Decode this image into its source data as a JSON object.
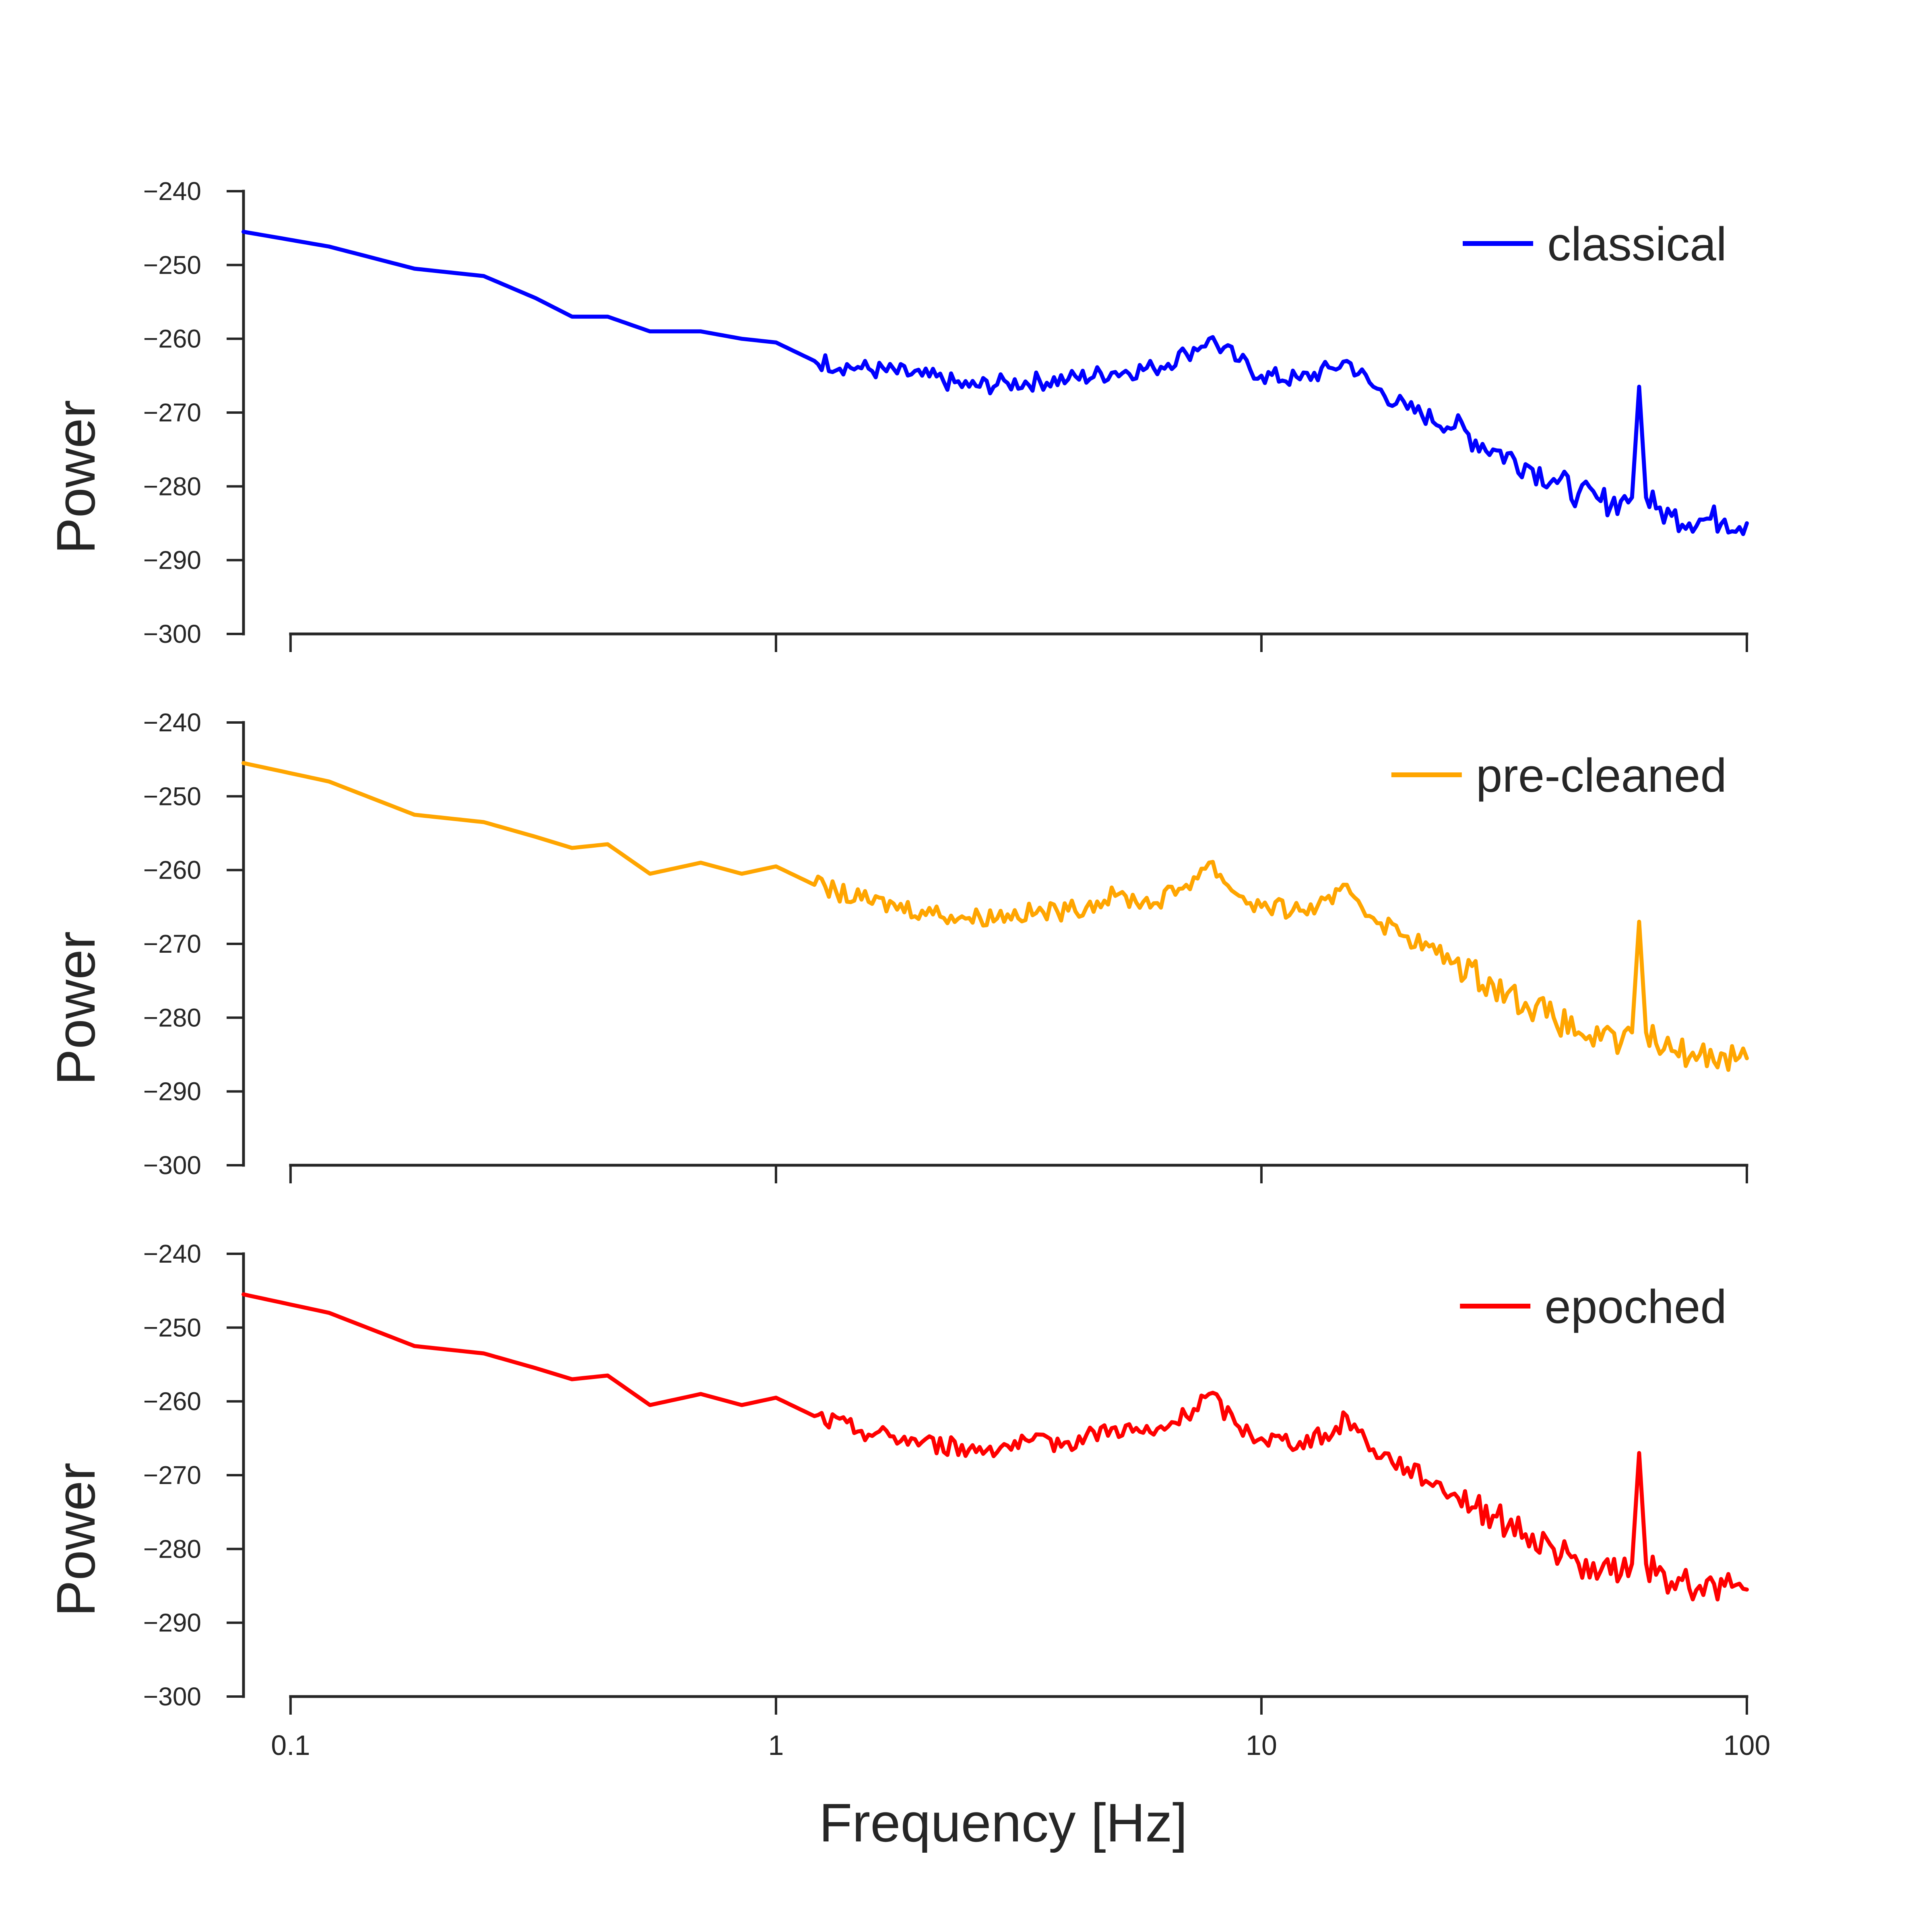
{
  "chart_data": [
    {
      "type": "line",
      "ylabel": "Power",
      "xlabel": "",
      "xscale": "log",
      "xlim": [
        0.08,
        100
      ],
      "ylim": [
        -300,
        -240
      ],
      "yticks": [
        "−240",
        "−250",
        "−260",
        "−270",
        "−280",
        "−290",
        "−300"
      ],
      "xticks": [
        0.1,
        1,
        10,
        100
      ],
      "xtick_labels": [],
      "legend_position": "top-right",
      "color": "#0000ff",
      "series": [
        {
          "name": "classical",
          "x": [
            0.08,
            0.12,
            0.18,
            0.25,
            0.32,
            0.38,
            0.45,
            0.55,
            0.7,
            0.85,
            1.0,
            1.2,
            1.5,
            2.0,
            2.5,
            3.0,
            4.0,
            5.0,
            6.0,
            7.0,
            7.8,
            9.0,
            10.0,
            12.0,
            14.0,
            15.0,
            17.0,
            20.0,
            25.0,
            30.0,
            35.0,
            40.0,
            45.0,
            50.0,
            55.0,
            58.0,
            60.0,
            62.0,
            65.0,
            70.0,
            80.0,
            90.0,
            100.0
          ],
          "y": [
            -245.5,
            -247.5,
            -250.5,
            -251.5,
            -254.5,
            -257.0,
            -257.0,
            -259.0,
            -259.0,
            -260.0,
            -260.5,
            -263.0,
            -264.0,
            -265.0,
            -266.5,
            -266.0,
            -265.5,
            -264.5,
            -264.0,
            -262.0,
            -260.0,
            -263.0,
            -265.0,
            -265.5,
            -264.0,
            -263.0,
            -266.5,
            -269.5,
            -272.0,
            -275.0,
            -277.0,
            -279.0,
            -281.0,
            -282.0,
            -282.0,
            -281.5,
            -266.5,
            -281.5,
            -283.0,
            -284.0,
            -284.5,
            -284.5,
            -285.0
          ]
        }
      ]
    },
    {
      "type": "line",
      "ylabel": "Power",
      "xlabel": "",
      "xscale": "log",
      "xlim": [
        0.08,
        100
      ],
      "ylim": [
        -300,
        -240
      ],
      "yticks": [
        "−240",
        "−250",
        "−260",
        "−270",
        "−280",
        "−290",
        "−300"
      ],
      "xticks": [
        0.1,
        1,
        10,
        100
      ],
      "xtick_labels": [],
      "legend_position": "top-right",
      "color": "#ffa500",
      "series": [
        {
          "name": "pre-cleaned",
          "x": [
            0.08,
            0.12,
            0.18,
            0.25,
            0.32,
            0.38,
            0.45,
            0.55,
            0.7,
            0.85,
            1.0,
            1.2,
            1.5,
            2.0,
            2.5,
            3.0,
            4.0,
            5.0,
            6.0,
            7.0,
            7.8,
            9.0,
            10.0,
            12.0,
            14.0,
            15.0,
            17.0,
            20.0,
            25.0,
            30.0,
            35.0,
            40.0,
            45.0,
            50.0,
            55.0,
            58.0,
            60.0,
            62.0,
            65.0,
            70.0,
            80.0,
            90.0,
            100.0
          ],
          "y": [
            -245.5,
            -248.0,
            -252.5,
            -253.5,
            -255.5,
            -257.0,
            -256.5,
            -260.5,
            -259.0,
            -260.5,
            -259.5,
            -262.0,
            -264.0,
            -265.5,
            -266.5,
            -266.0,
            -265.5,
            -263.5,
            -264.5,
            -262.0,
            -259.0,
            -263.5,
            -265.0,
            -265.5,
            -264.5,
            -262.0,
            -266.5,
            -269.0,
            -272.5,
            -275.5,
            -278.0,
            -280.0,
            -282.0,
            -283.0,
            -283.5,
            -282.0,
            -267.0,
            -282.0,
            -283.5,
            -284.5,
            -285.0,
            -285.0,
            -285.5
          ]
        }
      ]
    },
    {
      "type": "line",
      "ylabel": "Power",
      "xlabel": "Frequency [Hz]",
      "xscale": "log",
      "xlim": [
        0.08,
        100
      ],
      "ylim": [
        -300,
        -240
      ],
      "yticks": [
        "−240",
        "−250",
        "−260",
        "−270",
        "−280",
        "−290",
        "−300"
      ],
      "xticks": [
        0.1,
        1,
        10,
        100
      ],
      "xtick_labels": [
        "0.1",
        "1",
        "10",
        "100"
      ],
      "legend_position": "top-right",
      "color": "#ff0000",
      "series": [
        {
          "name": "epoched",
          "x": [
            0.08,
            0.12,
            0.18,
            0.25,
            0.32,
            0.38,
            0.45,
            0.55,
            0.7,
            0.85,
            1.0,
            1.2,
            1.5,
            2.0,
            2.5,
            3.0,
            4.0,
            5.0,
            6.0,
            7.0,
            7.8,
            9.0,
            10.0,
            12.0,
            14.0,
            15.0,
            17.0,
            20.0,
            25.0,
            30.0,
            35.0,
            40.0,
            45.0,
            50.0,
            55.0,
            58.0,
            60.0,
            62.0,
            65.0,
            70.0,
            80.0,
            90.0,
            100.0
          ],
          "y": [
            -245.5,
            -248.0,
            -252.5,
            -253.5,
            -255.5,
            -257.0,
            -256.5,
            -260.5,
            -259.0,
            -260.5,
            -259.5,
            -262.0,
            -264.0,
            -265.5,
            -266.5,
            -266.0,
            -265.5,
            -263.5,
            -264.5,
            -262.0,
            -259.0,
            -263.5,
            -265.0,
            -265.5,
            -264.5,
            -262.0,
            -266.5,
            -269.0,
            -272.5,
            -275.5,
            -278.0,
            -280.0,
            -282.0,
            -283.0,
            -283.5,
            -282.0,
            -267.0,
            -282.0,
            -283.5,
            -284.5,
            -285.0,
            -285.0,
            -285.5
          ]
        }
      ]
    }
  ]
}
